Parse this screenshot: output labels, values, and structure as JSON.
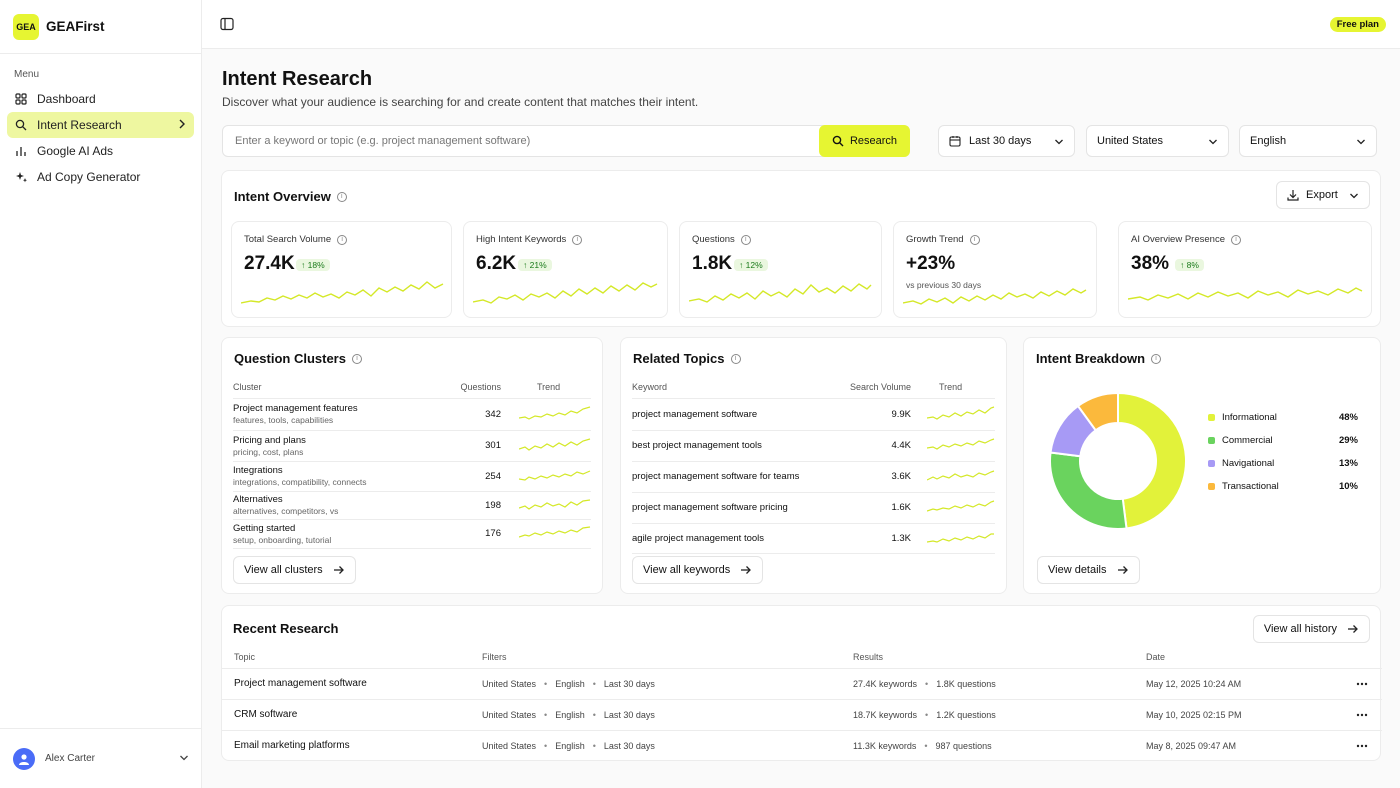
{
  "brand": {
    "logo_text": "GEA",
    "name": "GEAFirst",
    "accent": "#e6f532"
  },
  "sidebar": {
    "menu_label": "Menu",
    "items": [
      {
        "label": "Dashboard",
        "icon": "grid-icon"
      },
      {
        "label": "Intent Research",
        "icon": "search-icon",
        "active": true
      },
      {
        "label": "Google AI Ads",
        "icon": "bar-chart-icon"
      },
      {
        "label": "Ad Copy Generator",
        "icon": "sparkle-icon"
      }
    ],
    "user": {
      "name": "Alex Carter"
    }
  },
  "topbar": {
    "plan_badge": "Free plan"
  },
  "page": {
    "title": "Intent Research",
    "subtitle": "Discover what your audience is searching for and create content that matches their intent."
  },
  "search": {
    "placeholder": "Enter a keyword or topic (e.g. project management software)",
    "value": "",
    "button_label": "Research"
  },
  "filters": {
    "date_range": "Last 30 days",
    "country": "United States",
    "language": "English"
  },
  "overview": {
    "title": "Intent Overview",
    "export_label": "Export",
    "metrics": [
      {
        "label": "Total Search Volume",
        "value": "27.4K",
        "change": "18%"
      },
      {
        "label": "High Intent Keywords",
        "value": "6.2K",
        "change": "21%"
      },
      {
        "label": "Questions",
        "value": "1.8K",
        "change": "12%"
      },
      {
        "label": "Growth Trend",
        "value": "+23%",
        "note": "vs previous 30 days"
      },
      {
        "label": "AI Overview Presence",
        "value": "38%",
        "change": "8%"
      }
    ]
  },
  "question_clusters": {
    "title": "Question Clusters",
    "columns": [
      "Cluster",
      "Questions",
      "Trend"
    ],
    "rows": [
      {
        "name": "Project management features",
        "desc": "features, tools, capabilities",
        "count": "342"
      },
      {
        "name": "Pricing and plans",
        "desc": "pricing, cost, plans",
        "count": "301"
      },
      {
        "name": "Integrations",
        "desc": "integrations, compatibility, connects",
        "count": "254"
      },
      {
        "name": "Alternatives",
        "desc": "alternatives, competitors, vs",
        "count": "198"
      },
      {
        "name": "Getting started",
        "desc": "setup, onboarding, tutorial",
        "count": "176"
      }
    ],
    "button_label": "View all clusters"
  },
  "related_topics": {
    "title": "Related Topics",
    "columns": [
      "Keyword",
      "Search Volume",
      "Trend"
    ],
    "rows": [
      {
        "keyword": "project management software",
        "volume": "9.9K"
      },
      {
        "keyword": "best project management tools",
        "volume": "4.4K"
      },
      {
        "keyword": "project management software for teams",
        "volume": "3.6K"
      },
      {
        "keyword": "project management software pricing",
        "volume": "1.6K"
      },
      {
        "keyword": "agile project management tools",
        "volume": "1.3K"
      }
    ],
    "button_label": "View all keywords"
  },
  "intent_breakdown": {
    "title": "Intent Breakdown",
    "button_label": "View details",
    "segments": [
      {
        "label": "Informational",
        "pct": "48%",
        "value": 48,
        "color": "#e2f23a"
      },
      {
        "label": "Commercial",
        "pct": "29%",
        "value": 29,
        "color": "#6ad35e"
      },
      {
        "label": "Navigational",
        "pct": "13%",
        "value": 13,
        "color": "#a79af5"
      },
      {
        "label": "Transactional",
        "pct": "10%",
        "value": 10,
        "color": "#fbb93c"
      }
    ]
  },
  "recent_research": {
    "title": "Recent Research",
    "button_label": "View all history",
    "columns": [
      "Topic",
      "Filters",
      "Results",
      "Date"
    ],
    "rows": [
      {
        "topic": "Project management software",
        "country": "United States",
        "language": "English",
        "range": "Last 30 days",
        "keywords": "27.4K keywords",
        "questions": "1.8K questions",
        "date": "May 12, 2025 10:24 AM"
      },
      {
        "topic": "CRM software",
        "country": "United States",
        "language": "English",
        "range": "Last 30 days",
        "keywords": "18.7K keywords",
        "questions": "1.2K questions",
        "date": "May 10, 2025 02:15 PM"
      },
      {
        "topic": "Email marketing platforms",
        "country": "United States",
        "language": "English",
        "range": "Last 30 days",
        "keywords": "11.3K keywords",
        "questions": "987 questions",
        "date": "May 8, 2025 09:47 AM"
      }
    ]
  }
}
